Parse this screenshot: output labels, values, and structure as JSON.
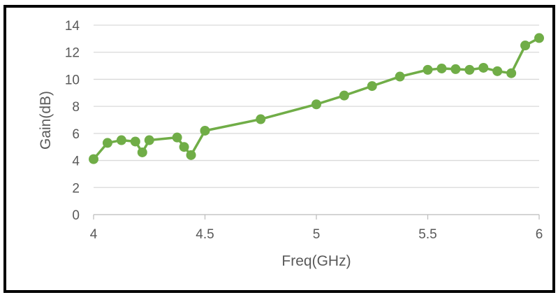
{
  "chart_data": {
    "type": "line",
    "title": "",
    "xlabel": "Freq(GHz)",
    "ylabel": "Gain(dB)",
    "xlim": [
      4,
      6
    ],
    "ylim": [
      0,
      14
    ],
    "x_ticks": [
      "4",
      "4.5",
      "5",
      "5.5",
      "6"
    ],
    "y_ticks": [
      "0",
      "2",
      "4",
      "6",
      "8",
      "10",
      "12",
      "14"
    ],
    "grid": true,
    "legend": "none",
    "series_color": "#70AD47",
    "series": [
      {
        "x": [
          4.0,
          4.0625,
          4.125,
          4.1875,
          4.21875,
          4.25,
          4.375,
          4.40625,
          4.4375,
          4.5,
          4.75,
          5.0,
          5.125,
          5.25,
          5.375,
          5.5,
          5.5625,
          5.625,
          5.6875,
          5.75,
          5.8125,
          5.875,
          5.9375,
          6.0
        ],
        "y": [
          4.1,
          5.3,
          5.5,
          5.4,
          4.6,
          5.5,
          5.7,
          5.0,
          4.4,
          6.2,
          7.05,
          8.15,
          8.8,
          9.5,
          10.2,
          10.7,
          10.8,
          10.75,
          10.7,
          10.85,
          10.6,
          10.45,
          12.5,
          13.05
        ]
      }
    ]
  }
}
